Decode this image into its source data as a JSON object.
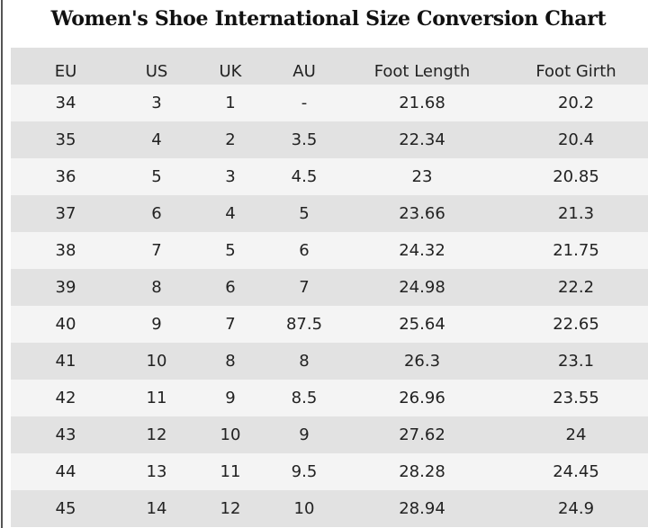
{
  "chart_data": {
    "type": "table",
    "title": "Women's Shoe International Size Conversion Chart",
    "columns": [
      "EU",
      "US",
      "UK",
      "AU",
      "Foot Length",
      "Foot Girth"
    ],
    "rows": [
      [
        "34",
        "3",
        "1",
        "-",
        "21.68",
        "20.2"
      ],
      [
        "35",
        "4",
        "2",
        "3.5",
        "22.34",
        "20.4"
      ],
      [
        "36",
        "5",
        "3",
        "4.5",
        "23",
        "20.85"
      ],
      [
        "37",
        "6",
        "4",
        "5",
        "23.66",
        "21.3"
      ],
      [
        "38",
        "7",
        "5",
        "6",
        "24.32",
        "21.75"
      ],
      [
        "39",
        "8",
        "6",
        "7",
        "24.98",
        "22.2"
      ],
      [
        "40",
        "9",
        "7",
        "87.5",
        "25.64",
        "22.65"
      ],
      [
        "41",
        "10",
        "8",
        "8",
        "26.3",
        "23.1"
      ],
      [
        "42",
        "11",
        "9",
        "8.5",
        "26.96",
        "23.55"
      ],
      [
        "43",
        "12",
        "10",
        "9",
        "27.62",
        "24"
      ],
      [
        "44",
        "13",
        "11",
        "9.5",
        "28.28",
        "24.45"
      ],
      [
        "45",
        "14",
        "12",
        "10",
        "28.94",
        "24.9"
      ]
    ],
    "colors": {
      "header_bg": "#e0e0e0",
      "row_light": "#f4f4f4",
      "row_dark": "#e2e2e2",
      "text": "#222222"
    }
  }
}
